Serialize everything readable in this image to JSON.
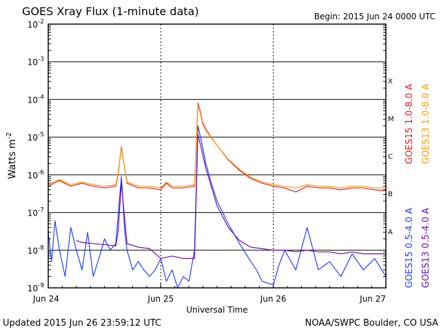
{
  "chart_data": {
    "type": "line",
    "title": "GOES Xray Flux (1-minute data)",
    "begin_label": "Begin:  2015 Jun 24 0000 UTC",
    "xlabel": "Universal Time",
    "ylabel": "Watts m",
    "ylabel_superscript": "-2",
    "y_scale": "log",
    "ylim": [
      1e-09,
      0.01
    ],
    "y_ticks": [
      {
        "mantissa": "10",
        "exp": "-2"
      },
      {
        "mantissa": "10",
        "exp": "-3"
      },
      {
        "mantissa": "10",
        "exp": "-4"
      },
      {
        "mantissa": "10",
        "exp": "-5"
      },
      {
        "mantissa": "10",
        "exp": "-6"
      },
      {
        "mantissa": "10",
        "exp": "-7"
      },
      {
        "mantissa": "10",
        "exp": "-8"
      },
      {
        "mantissa": "10",
        "exp": "-9"
      }
    ],
    "x_ticks": [
      "Jun 24",
      "Jun 25",
      "Jun 26",
      "Jun 27"
    ],
    "xlim_days": [
      0,
      3
    ],
    "flare_classes": [
      {
        "label": "X",
        "level": 0.0001
      },
      {
        "label": "M",
        "level": 1e-05
      },
      {
        "label": "C",
        "level": 1e-06
      },
      {
        "label": "B",
        "level": 1e-07
      },
      {
        "label": "A",
        "level": 1e-08
      }
    ],
    "grid": true,
    "legend_placement": "right",
    "series": [
      {
        "name": "GOES15 1.0-8.0 A",
        "color": "#e41a1c",
        "x": [
          0,
          0.05,
          0.1,
          0.2,
          0.3,
          0.4,
          0.5,
          0.6,
          0.62,
          0.65,
          0.7,
          0.8,
          0.9,
          1.0,
          1.05,
          1.1,
          1.2,
          1.3,
          1.33,
          1.35,
          1.37,
          1.4,
          1.5,
          1.6,
          1.7,
          1.8,
          1.9,
          2.0,
          2.1,
          2.2,
          2.3,
          2.4,
          2.5,
          2.6,
          2.7,
          2.8,
          2.9,
          3.0
        ],
        "y": [
          5e-07,
          6e-07,
          7e-07,
          5e-07,
          6e-07,
          5e-07,
          4.5e-07,
          5e-07,
          1e-06,
          5.5e-06,
          6e-07,
          4.5e-07,
          4.5e-07,
          4e-07,
          6e-07,
          4.5e-07,
          4.5e-07,
          5e-07,
          8e-05,
          5e-05,
          2.5e-05,
          1.6e-05,
          6e-06,
          2.5e-06,
          1.3e-06,
          8e-07,
          6e-07,
          5e-07,
          4.5e-07,
          3.5e-07,
          5e-07,
          4.5e-07,
          4.5e-07,
          4e-07,
          4.5e-07,
          4.5e-07,
          4e-07,
          3.8e-07
        ]
      },
      {
        "name": "GOES13 1.0-8.0 A",
        "color": "#ff9900",
        "x": [
          0,
          0.05,
          0.1,
          0.2,
          0.3,
          0.4,
          0.5,
          0.6,
          0.62,
          0.65,
          0.7,
          0.8,
          0.9,
          1.0,
          1.05,
          1.1,
          1.2,
          1.3,
          1.33,
          1.35,
          1.37,
          1.4,
          1.5,
          1.6,
          1.7,
          1.8,
          1.9,
          2.0,
          2.1,
          2.2,
          2.3,
          2.4,
          2.5,
          2.6,
          2.7,
          2.8,
          2.9,
          3.0
        ],
        "y": [
          5.5e-07,
          6.5e-07,
          7.5e-07,
          5.5e-07,
          6.5e-07,
          5.5e-07,
          5e-07,
          5.5e-07,
          1.1e-06,
          5e-06,
          6.5e-07,
          5e-07,
          5e-07,
          4.5e-07,
          6.5e-07,
          5e-07,
          5e-07,
          5.5e-07,
          7e-05,
          4.5e-05,
          2.3e-05,
          1.5e-05,
          6e-06,
          2.6e-06,
          1.4e-06,
          8.5e-07,
          6.5e-07,
          5.5e-07,
          5e-07,
          4.5e-07,
          5.5e-07,
          5e-07,
          5e-07,
          4.5e-07,
          5e-07,
          5e-07,
          4.5e-07,
          4.5e-07
        ]
      },
      {
        "name": "GOES15 0.5-4.0 A",
        "color": "#1f3fff",
        "x": [
          0,
          0.03,
          0.06,
          0.1,
          0.15,
          0.2,
          0.25,
          0.3,
          0.35,
          0.4,
          0.45,
          0.5,
          0.55,
          0.6,
          0.62,
          0.65,
          0.68,
          0.7,
          0.75,
          0.8,
          0.85,
          0.9,
          0.95,
          1.0,
          1.05,
          1.1,
          1.15,
          1.2,
          1.25,
          1.3,
          1.33,
          1.36,
          1.4,
          1.45,
          1.5,
          1.6,
          1.7,
          1.8,
          1.85,
          1.9,
          2.0,
          2.05,
          2.1,
          2.2,
          2.3,
          2.4,
          2.5,
          2.6,
          2.7,
          2.8,
          2.9,
          3.0
        ],
        "y": [
          3e-08,
          5e-09,
          6e-08,
          1e-08,
          2e-09,
          4e-08,
          1e-08,
          3e-09,
          3e-08,
          2e-09,
          6e-09,
          2e-08,
          1e-08,
          1.5e-08,
          8e-08,
          9e-07,
          3e-08,
          1e-08,
          3e-09,
          5e-09,
          3e-09,
          2e-09,
          3e-09,
          6e-09,
          1.5e-09,
          3e-09,
          1e-09,
          2e-09,
          1.5e-09,
          1e-08,
          2e-05,
          8e-06,
          2e-06,
          6e-07,
          2e-07,
          5e-08,
          1.5e-08,
          5e-09,
          3e-09,
          1.5e-09,
          1.2e-09,
          4e-09,
          1e-08,
          3e-09,
          4e-08,
          3e-09,
          5e-09,
          2e-09,
          8e-09,
          3e-09,
          6e-09,
          2e-09
        ]
      },
      {
        "name": "GOES13 0.5-4.0 A",
        "color": "#6a0dad",
        "x": [
          0.25,
          0.3,
          0.4,
          0.5,
          0.6,
          0.62,
          0.65,
          0.7,
          0.8,
          0.9,
          1.0,
          1.1,
          1.2,
          1.3,
          1.33,
          1.36,
          1.4,
          1.5,
          1.6,
          1.7,
          1.8,
          1.9,
          2.0,
          2.1,
          2.2,
          2.3,
          2.4,
          2.5,
          2.6,
          2.7,
          2.8,
          2.9,
          3.0
        ],
        "y": [
          1.8e-08,
          1.6e-08,
          1.5e-08,
          1.4e-08,
          1.3e-08,
          3e-08,
          6e-07,
          1.5e-08,
          1.2e-08,
          1.1e-08,
          6e-09,
          7e-09,
          6e-09,
          6e-09,
          1.2e-05,
          5e-06,
          1.5e-06,
          1.5e-07,
          4e-08,
          1.8e-08,
          1.2e-08,
          1.1e-08,
          1e-08,
          1e-08,
          9e-09,
          1e-08,
          9e-09,
          9e-09,
          8e-09,
          9e-09,
          8e-09,
          8e-09,
          8e-09
        ]
      }
    ]
  },
  "footer": {
    "updated": "Updated 2015 Jun 26 23:59:12 UTC",
    "credit": "NOAA/SWPC Boulder, CO USA"
  }
}
